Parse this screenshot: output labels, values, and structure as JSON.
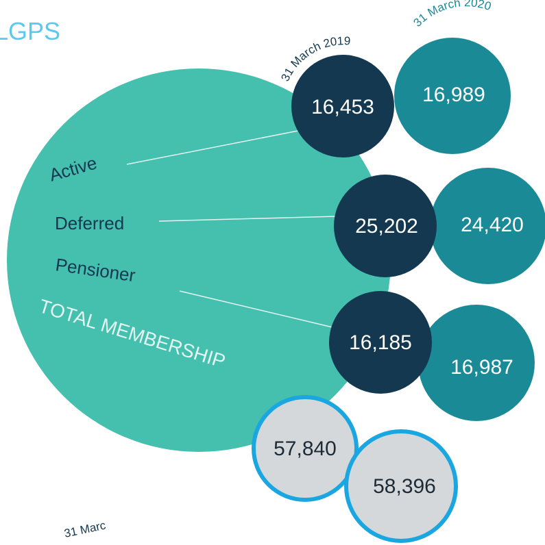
{
  "title": "LGPS",
  "dates": [
    "31 March 2019",
    "31 March 2020"
  ],
  "rows": [
    {
      "label": "Active",
      "values": [
        "16,453",
        "16,989"
      ]
    },
    {
      "label": "Deferred",
      "values": [
        "25,202",
        "24,420"
      ]
    },
    {
      "label": "Pensioner",
      "values": [
        "16,185",
        "16,987"
      ]
    }
  ],
  "total": {
    "label": "TOTAL MEMBERSHIP",
    "values": [
      "57,840",
      "58,396"
    ]
  },
  "footer_fragment": "31 Marc"
}
